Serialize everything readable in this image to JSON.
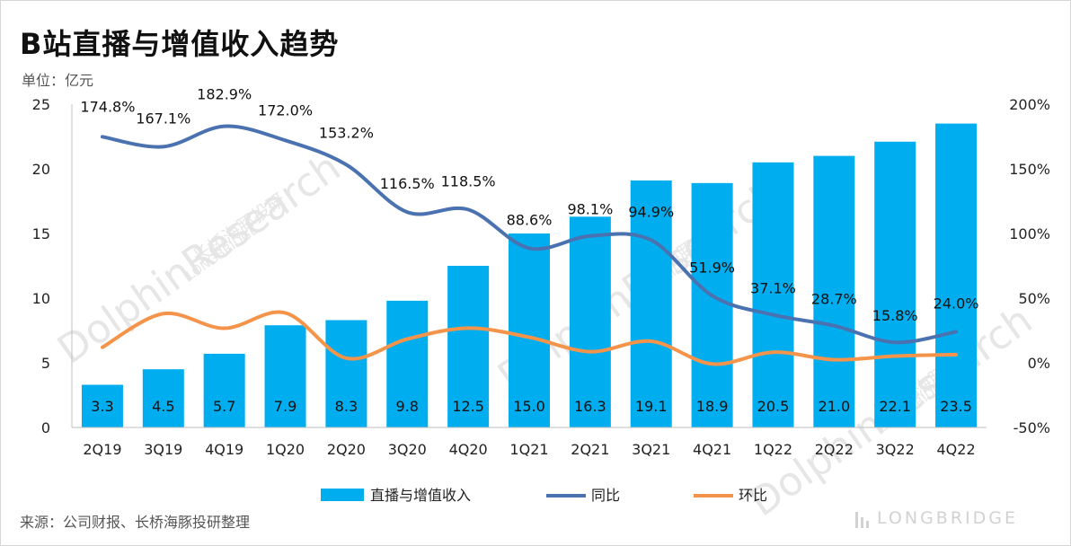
{
  "title": "B站直播与增值收入趋势",
  "unit": "单位：亿元",
  "source": "来源：公司财报、长桥海豚投研整理",
  "watermark": {
    "main": "DolphinResearch",
    "sub": "长桥海豚投研",
    "sub2": "LONGBRIDGE"
  },
  "brand": "LONGBRIDGE",
  "colors": {
    "bar": "#00aeef",
    "yoy": "#4a72b0",
    "qoq": "#f4944a"
  },
  "chart_data": {
    "type": "bar",
    "title": "B站直播与增值收入趋势",
    "categories": [
      "2Q19",
      "3Q19",
      "4Q19",
      "1Q20",
      "2Q20",
      "3Q20",
      "4Q20",
      "1Q21",
      "2Q21",
      "3Q21",
      "4Q21",
      "1Q22",
      "2Q22",
      "3Q22",
      "4Q22"
    ],
    "left_axis": {
      "ylim": [
        0,
        25
      ],
      "ticks": [
        "0",
        "5",
        "10",
        "15",
        "20",
        "25"
      ],
      "tick_values": [
        0,
        5,
        10,
        15,
        20,
        25
      ]
    },
    "right_axis": {
      "ylim": [
        -50,
        200
      ],
      "ticks": [
        "-50%",
        "0%",
        "50%",
        "100%",
        "150%",
        "200%"
      ],
      "tick_values": [
        -50,
        0,
        50,
        100,
        150,
        200
      ]
    },
    "series": [
      {
        "name": "直播与增值收入",
        "type": "bar",
        "axis": "left",
        "values": [
          3.3,
          4.5,
          5.7,
          7.9,
          8.3,
          9.8,
          12.5,
          15.0,
          16.3,
          19.1,
          18.9,
          20.5,
          21.0,
          22.1,
          23.5
        ],
        "labels": [
          "3.3",
          "4.5",
          "5.7",
          "7.9",
          "8.3",
          "9.8",
          "12.5",
          "15.0",
          "16.3",
          "19.1",
          "18.9",
          "20.5",
          "21.0",
          "22.1",
          "23.5"
        ]
      },
      {
        "name": "同比",
        "type": "line",
        "axis": "right",
        "values": [
          174.8,
          167.1,
          182.9,
          172.0,
          153.2,
          116.5,
          118.5,
          88.6,
          98.1,
          94.9,
          51.9,
          37.1,
          28.7,
          15.8,
          24.0
        ],
        "labels": [
          "174.8%",
          "167.1%",
          "182.9%",
          "172.0%",
          "153.2%",
          "116.5%",
          "118.5%",
          "88.6%",
          "98.1%",
          "94.9%",
          "51.9%",
          "37.1%",
          "28.7%",
          "15.8%",
          "24.0%"
        ]
      },
      {
        "name": "环比",
        "type": "line",
        "axis": "right",
        "values": [
          12.0,
          38.0,
          26.7,
          38.6,
          3.6,
          18.4,
          26.8,
          19.8,
          8.6,
          16.7,
          -0.9,
          8.2,
          2.4,
          5.2,
          6.3
        ]
      }
    ],
    "legend": {
      "position": "bottom"
    },
    "grid": false
  }
}
